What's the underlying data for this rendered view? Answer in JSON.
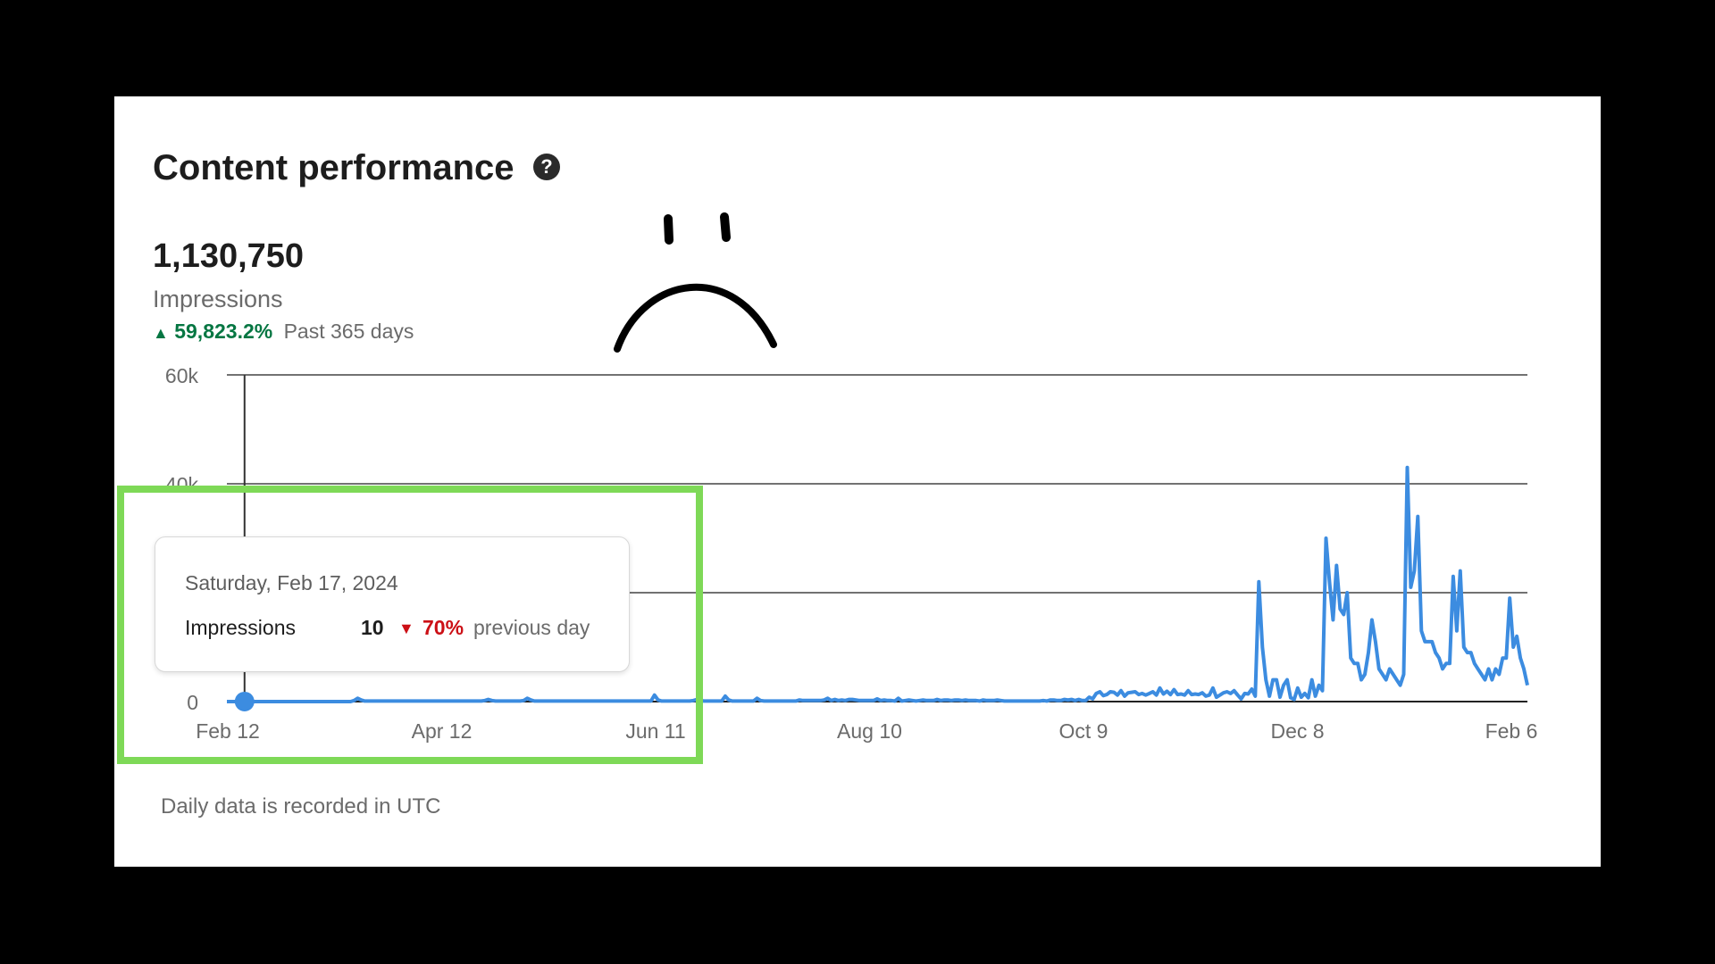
{
  "header": {
    "title": "Content performance",
    "help_icon": "question-circle-icon"
  },
  "summary": {
    "total": "1,130,750",
    "metric": "Impressions",
    "change_pct": "59,823.2%",
    "period": "Past 365 days"
  },
  "tooltip": {
    "date": "Saturday, Feb 17, 2024",
    "label": "Impressions",
    "value": "10",
    "change": "70%",
    "suffix": "previous day"
  },
  "footnote": "Daily data is recorded in UTC",
  "colors": {
    "line": "#3c8ce0",
    "positive": "#057642",
    "negative": "#cc1016",
    "highlight": "#7ed957"
  },
  "chart_data": {
    "type": "line",
    "title": "",
    "xlabel": "",
    "ylabel": "",
    "y_ticks": [
      "0",
      "20k",
      "40k",
      "60k"
    ],
    "y_tick_values": [
      0,
      20000,
      40000,
      60000
    ],
    "ylim": [
      0,
      60000
    ],
    "x_ticks": [
      "Feb 12",
      "Apr 12",
      "Jun 11",
      "Aug 10",
      "Oct 9",
      "Dec 8",
      "Feb 6"
    ],
    "grid": true,
    "legend": "none",
    "highlight_point": {
      "x": "Feb 17, 2024",
      "y": 10
    },
    "series": [
      {
        "values": [
          0,
          0,
          0,
          0,
          0,
          10,
          0,
          0,
          0,
          0,
          0,
          0,
          0,
          0,
          0,
          0,
          0,
          0,
          0,
          0,
          0,
          0,
          0,
          0,
          0,
          0,
          0,
          0,
          0,
          0,
          0,
          0,
          0,
          0,
          0,
          0,
          200,
          600,
          300,
          100,
          100,
          100,
          100,
          100,
          100,
          100,
          100,
          100,
          100,
          100,
          100,
          100,
          100,
          100,
          100,
          100,
          100,
          100,
          100,
          100,
          100,
          100,
          100,
          100,
          100,
          100,
          100,
          100,
          100,
          100,
          100,
          100,
          100,
          200,
          400,
          200,
          100,
          100,
          100,
          100,
          100,
          100,
          100,
          100,
          200,
          600,
          300,
          100,
          100,
          100,
          100,
          100,
          100,
          100,
          100,
          100,
          100,
          100,
          100,
          100,
          100,
          100,
          100,
          100,
          100,
          100,
          100,
          100,
          100,
          100,
          100,
          100,
          100,
          100,
          100,
          100,
          100,
          100,
          100,
          100,
          100,
          1200,
          300,
          100,
          100,
          100,
          100,
          100,
          100,
          100,
          100,
          100,
          200,
          400,
          200,
          100,
          100,
          100,
          100,
          100,
          100,
          1000,
          300,
          100,
          100,
          100,
          100,
          100,
          100,
          100,
          600,
          200,
          100,
          100,
          100,
          100,
          100,
          100,
          100,
          100,
          100,
          100,
          300,
          200,
          200,
          200,
          200,
          200,
          200,
          300,
          600,
          200,
          400,
          200,
          300,
          200,
          400,
          400,
          300,
          200,
          200,
          200,
          200,
          200,
          500,
          200,
          300,
          200,
          200,
          100,
          600,
          100,
          200,
          300,
          200,
          100,
          200,
          300,
          200,
          200,
          200,
          400,
          200,
          300,
          300,
          200,
          300,
          300,
          200,
          300,
          200,
          200,
          200,
          100,
          300,
          200,
          200,
          200,
          300,
          200,
          100,
          100,
          100,
          100,
          100,
          100,
          100,
          100,
          100,
          100,
          100,
          200,
          100,
          300,
          300,
          200,
          200,
          400,
          300,
          400,
          200,
          400,
          200,
          200,
          800,
          500,
          1500,
          1800,
          1100,
          1300,
          1800,
          1700,
          1200,
          2000,
          1000,
          1600,
          1700,
          1800,
          1300,
          1500,
          1200,
          1500,
          1800,
          1200,
          2500,
          1400,
          1900,
          1300,
          2200,
          1300,
          1400,
          1200,
          2000,
          1300,
          1400,
          1300,
          1600,
          1000,
          1200,
          2500,
          800,
          1200,
          1600,
          1800,
          1500,
          2000,
          1200,
          500,
          1500,
          1400,
          2300,
          1000,
          22000,
          10000,
          4000,
          1000,
          4000,
          4000,
          800,
          3000,
          4000,
          700,
          400,
          2500,
          800,
          1500,
          700,
          4000,
          1000,
          3000,
          2000,
          30000,
          22000,
          15000,
          25000,
          17000,
          16000,
          20000,
          8000,
          7000,
          7000,
          4000,
          5000,
          9000,
          15000,
          11000,
          6000,
          5000,
          4000,
          6000,
          5000,
          4000,
          3000,
          5000,
          43000,
          21000,
          24000,
          34000,
          13000,
          11000,
          11000,
          11000,
          9000,
          8000,
          6000,
          7000,
          7000,
          23000,
          13000,
          24000,
          10000,
          9000,
          9000,
          7000,
          6000,
          5000,
          4000,
          6000,
          4000,
          6000,
          5000,
          8000,
          8000,
          19000,
          10000,
          12000,
          8000,
          6000,
          3000
        ]
      }
    ]
  }
}
